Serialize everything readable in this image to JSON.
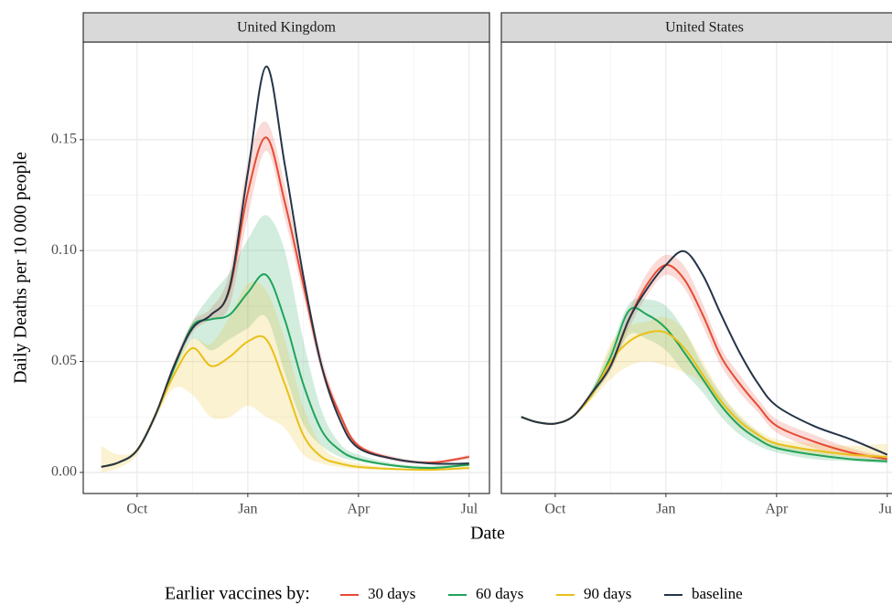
{
  "y_label": "Daily Deaths per 10 000 people",
  "x_label": "Date",
  "legend_title": "Earlier vaccines by:",
  "chart_data": [
    {
      "type": "line",
      "title": "United Kingdom",
      "x": [
        -0.97,
        -0.5,
        0,
        0.5,
        1,
        1.5,
        2,
        2.5,
        3,
        3.5,
        4,
        4.5,
        5,
        5.5,
        6,
        7,
        8,
        9
      ],
      "xlim": [
        -1.46,
        9.55
      ],
      "xticks": [
        {
          "value": 0,
          "label": "Oct"
        },
        {
          "value": 3,
          "label": "Jan"
        },
        {
          "value": 6,
          "label": "Apr"
        },
        {
          "value": 9,
          "label": "Jul"
        }
      ],
      "ylim": [
        -0.0095,
        0.194
      ],
      "yticks": [
        {
          "value": 0,
          "label": "0.00"
        },
        0.05,
        {
          "value": 0.1,
          "label": "0.10"
        },
        0.15
      ],
      "grid": true,
      "series": [
        {
          "name": "30 days",
          "color": "#e64b35",
          "values": [
            0.0025,
            0.0045,
            0.01,
            0.026,
            0.048,
            0.065,
            0.071,
            0.082,
            0.126,
            0.151,
            0.122,
            0.085,
            0.048,
            0.026,
            0.012,
            0.006,
            0.0045,
            0.007
          ],
          "lower": [
            0.0025,
            0.0045,
            0.01,
            0.026,
            0.046,
            0.063,
            0.069,
            0.075,
            0.115,
            0.145,
            0.115,
            0.08,
            0.045,
            0.024,
            0.011,
            0.005,
            0.004,
            0.006
          ],
          "upper": [
            0.0025,
            0.0045,
            0.01,
            0.026,
            0.05,
            0.068,
            0.074,
            0.09,
            0.14,
            0.158,
            0.13,
            0.09,
            0.052,
            0.028,
            0.013,
            0.007,
            0.005,
            0.008
          ]
        },
        {
          "name": "60 days",
          "color": "#20a35a",
          "values": [
            0.0025,
            0.0045,
            0.01,
            0.026,
            0.047,
            0.066,
            0.069,
            0.071,
            0.081,
            0.089,
            0.069,
            0.04,
            0.019,
            0.01,
            0.006,
            0.003,
            0.002,
            0.0035
          ],
          "lower": [
            0.0025,
            0.0045,
            0.01,
            0.026,
            0.045,
            0.06,
            0.055,
            0.06,
            0.065,
            0.07,
            0.045,
            0.022,
            0.012,
            0.007,
            0.005,
            0.0025,
            0.0018,
            0.003
          ],
          "upper": [
            0.0025,
            0.0045,
            0.01,
            0.026,
            0.049,
            0.068,
            0.08,
            0.09,
            0.105,
            0.116,
            0.1,
            0.06,
            0.028,
            0.013,
            0.008,
            0.004,
            0.003,
            0.005
          ]
        },
        {
          "name": "90 days",
          "color": "#e9c018",
          "values": [
            0.0025,
            0.0045,
            0.01,
            0.026,
            0.044,
            0.056,
            0.048,
            0.052,
            0.059,
            0.06,
            0.04,
            0.017,
            0.007,
            0.004,
            0.0025,
            0.0015,
            0.0012,
            0.002
          ],
          "lower": [
            0,
            0.002,
            0.008,
            0.024,
            0.038,
            0.035,
            0.025,
            0.025,
            0.03,
            0.025,
            0.02,
            0.008,
            0.004,
            0.0025,
            0.0015,
            0.001,
            0.001,
            0.0015
          ],
          "upper": [
            0.012,
            0.008,
            0.011,
            0.028,
            0.048,
            0.06,
            0.058,
            0.07,
            0.085,
            0.082,
            0.06,
            0.03,
            0.012,
            0.006,
            0.004,
            0.002,
            0.002,
            0.003
          ]
        },
        {
          "name": "baseline",
          "color": "#253447",
          "values": [
            0.0025,
            0.0045,
            0.01,
            0.026,
            0.048,
            0.065,
            0.071,
            0.083,
            0.135,
            0.183,
            0.139,
            0.089,
            0.048,
            0.0235,
            0.011,
            0.006,
            0.004,
            0.004
          ]
        }
      ]
    },
    {
      "type": "line",
      "title": "United States",
      "x": [
        -0.92,
        -0.5,
        0,
        0.5,
        1,
        1.5,
        2,
        2.5,
        3,
        3.5,
        4,
        4.5,
        5,
        5.5,
        6,
        7,
        8,
        9
      ],
      "xlim": [
        -1.46,
        9.55
      ],
      "xticks": [
        {
          "value": 0,
          "label": "Oct"
        },
        {
          "value": 3,
          "label": "Jan"
        },
        {
          "value": 6,
          "label": "Apr"
        },
        {
          "value": 9,
          "label": "Jul"
        }
      ],
      "ylim": [
        -0.0095,
        0.194
      ],
      "yticks": [
        0,
        0.05,
        0.1,
        0.15
      ],
      "grid": true,
      "series": [
        {
          "name": "30 days",
          "color": "#e64b35",
          "values": [
            0.025,
            0.0227,
            0.022,
            0.0255,
            0.036,
            0.048,
            0.069,
            0.085,
            0.0935,
            0.087,
            0.071,
            0.052,
            0.04,
            0.03,
            0.021,
            0.014,
            0.009,
            0.006
          ],
          "lower": [
            0.025,
            0.0227,
            0.022,
            0.0255,
            0.035,
            0.046,
            0.065,
            0.08,
            0.089,
            0.083,
            0.066,
            0.048,
            0.036,
            0.027,
            0.018,
            0.011,
            0.007,
            0.005
          ],
          "upper": [
            0.025,
            0.0227,
            0.022,
            0.0255,
            0.037,
            0.05,
            0.073,
            0.09,
            0.098,
            0.093,
            0.076,
            0.056,
            0.044,
            0.033,
            0.024,
            0.017,
            0.011,
            0.007
          ]
        },
        {
          "name": "60 days",
          "color": "#20a35a",
          "values": [
            0.025,
            0.0227,
            0.022,
            0.0255,
            0.036,
            0.052,
            0.073,
            0.071,
            0.065,
            0.054,
            0.042,
            0.03,
            0.021,
            0.015,
            0.011,
            0.008,
            0.006,
            0.005
          ],
          "lower": [
            0.025,
            0.0227,
            0.022,
            0.0255,
            0.034,
            0.046,
            0.062,
            0.06,
            0.055,
            0.045,
            0.036,
            0.025,
            0.017,
            0.012,
            0.009,
            0.006,
            0.005,
            0.004
          ],
          "upper": [
            0.025,
            0.0227,
            0.022,
            0.0255,
            0.038,
            0.056,
            0.076,
            0.078,
            0.075,
            0.064,
            0.048,
            0.035,
            0.025,
            0.018,
            0.013,
            0.01,
            0.007,
            0.006
          ]
        },
        {
          "name": "90 days",
          "color": "#e9c018",
          "values": [
            0.025,
            0.0227,
            0.022,
            0.0255,
            0.035,
            0.05,
            0.059,
            0.063,
            0.063,
            0.056,
            0.044,
            0.032,
            0.023,
            0.017,
            0.013,
            0.01,
            0.008,
            0.007
          ],
          "lower": [
            0.025,
            0.0227,
            0.022,
            0.0255,
            0.033,
            0.042,
            0.048,
            0.05,
            0.048,
            0.045,
            0.04,
            0.029,
            0.02,
            0.015,
            0.011,
            0.008,
            0.007,
            0.006
          ],
          "upper": [
            0.025,
            0.0227,
            0.022,
            0.0255,
            0.037,
            0.058,
            0.066,
            0.068,
            0.07,
            0.064,
            0.05,
            0.036,
            0.026,
            0.019,
            0.015,
            0.013,
            0.012,
            0.013
          ]
        },
        {
          "name": "baseline",
          "color": "#253447",
          "values": [
            0.025,
            0.0227,
            0.022,
            0.0255,
            0.036,
            0.048,
            0.069,
            0.083,
            0.0935,
            0.0997,
            0.089,
            0.071,
            0.054,
            0.04,
            0.03,
            0.021,
            0.015,
            0.008
          ]
        }
      ]
    }
  ]
}
